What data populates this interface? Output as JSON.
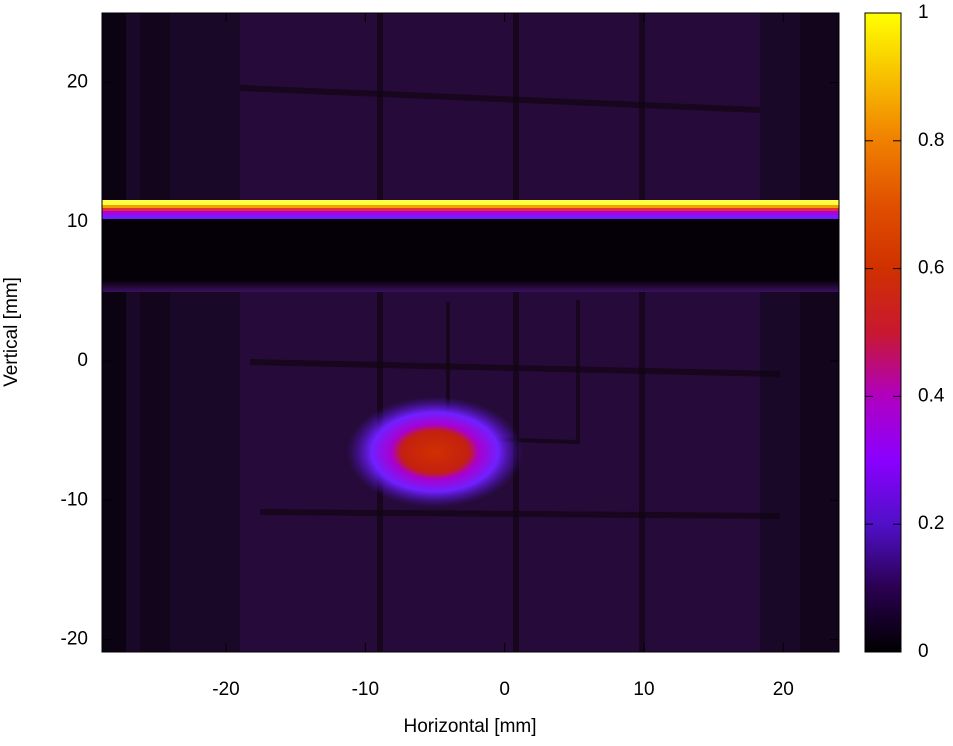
{
  "chart_data": {
    "type": "heatmap",
    "xlabel": "Horizontal [mm]",
    "ylabel": "Vertical [mm]",
    "xlim": [
      -28.9,
      24
    ],
    "ylim": [
      -20.9,
      25
    ],
    "xticks": [
      -20,
      -10,
      0,
      10,
      20
    ],
    "yticks": [
      -20,
      -10,
      0,
      10,
      20
    ],
    "colorbar": {
      "clim": [
        0,
        1
      ],
      "ticks": [
        0,
        0.2,
        0.4,
        0.6,
        0.8,
        1
      ],
      "palette": [
        "#000000",
        "#2a0050",
        "#5010c8",
        "#8a00ff",
        "#b000c0",
        "#c81830",
        "#d03000",
        "#e05000",
        "#f08000",
        "#f8c000",
        "#ffff00"
      ]
    }
  }
}
